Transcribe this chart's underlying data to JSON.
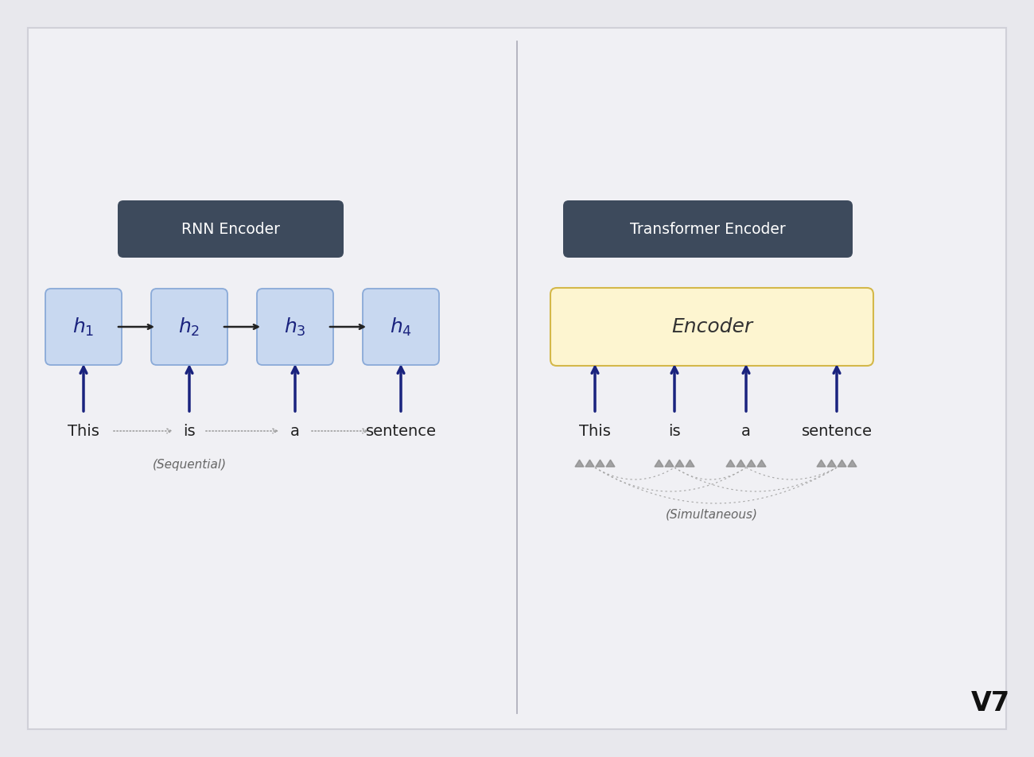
{
  "bg_color": "#e8e8ed",
  "card_color": "#ecedf0",
  "fig_width": 13.0,
  "fig_height": 9.52,
  "rnn_title": "RNN Encoder",
  "transformer_title": "Transformer Encoder",
  "title_box_color": "#3d4a5c",
  "title_text_color": "#ffffff",
  "rnn_box_color": "#c8d8f0",
  "rnn_box_edge": "#8aaad8",
  "rnn_labels": [
    "1",
    "2",
    "3",
    "4"
  ],
  "rnn_words": [
    "This",
    "is",
    "a",
    "sentence"
  ],
  "transformer_enc_color": "#fdf5d0",
  "transformer_enc_edge": "#d4b84a",
  "transformer_enc_label": "Encoder",
  "transformer_words": [
    "This",
    "is",
    "a",
    "sentence"
  ],
  "arrow_color": "#1a237e",
  "seq_label": "(Sequential)",
  "sim_label": "(Simultaneous)",
  "word_color": "#222222",
  "divider_color": "#b0b0bc"
}
